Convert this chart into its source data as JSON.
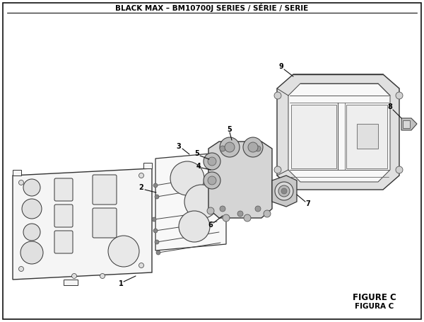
{
  "title": "BLACK MAX – BM10700J SERIES / SÉRIE / SERIE",
  "figure_label": "FIGURE C",
  "figura_label": "FIGURA C",
  "bg_color": "#ffffff",
  "border_color": "#222222",
  "ec": "#333333",
  "light_gray": "#d8d8d8",
  "mid_gray": "#bbbbbb",
  "panel_fill": "#f2f2f2",
  "white": "#ffffff"
}
